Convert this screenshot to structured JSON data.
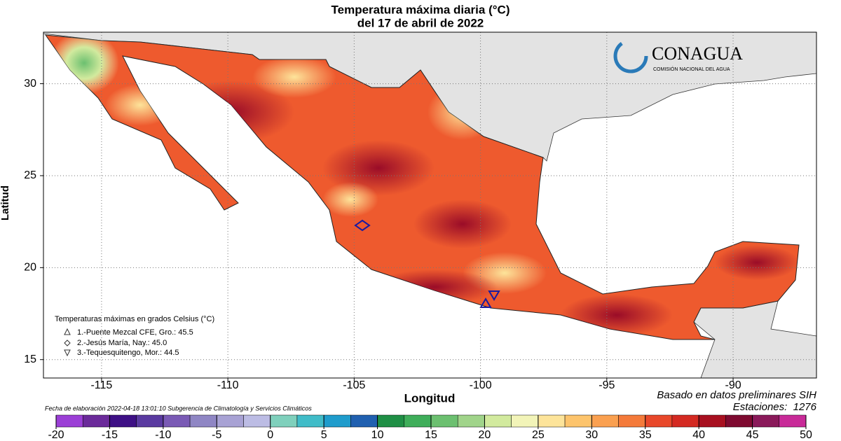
{
  "chart_data": {
    "type": "map",
    "title": [
      "Temperatura máxima diaria (°C)",
      "del 17 de abril de 2022"
    ],
    "x_label": "Longitud",
    "y_label": "Latitud",
    "xlim": [
      -117.3,
      -86.7
    ],
    "xticks": [
      -115,
      -110,
      -105,
      -100,
      -95,
      -90
    ],
    "ylim": [
      14,
      32.8
    ],
    "yticks": [
      15,
      20,
      25,
      30
    ],
    "grid": true,
    "logo": {
      "name": "CONAGUA",
      "subtitle": "COMISIÓN NACIONAL DEL AGUA"
    },
    "legend": {
      "title": "Temperaturas máximas en grados Celsius (°C)",
      "entries": [
        "1.-Puente Mezcal CFE, Gro.: 45.5",
        "2.-Jesús María, Nay.: 45.0",
        "3.-Tequesquitengo, Mor.: 44.5"
      ]
    },
    "source_note": "Basado en datos preliminares SIH",
    "stations_note": "Estaciones:  1276",
    "date_note": "Fecha de elaboración 2022-04-18 13:01:10 Subgerencia de Climatología y Servicios Climáticos",
    "colorbar": {
      "lim": [
        -20,
        50
      ],
      "ticks": [
        -20,
        -15,
        -10,
        -5,
        0,
        5,
        10,
        15,
        20,
        25,
        30,
        35,
        40,
        45,
        50
      ],
      "colors": [
        "#9b3fd6",
        "#6b2a9a",
        "#3e1085",
        "#5a3aa0",
        "#7a5ab5",
        "#8f86c4",
        "#a8a2d4",
        "#bcbce4",
        "#7fd0bc",
        "#40bcc8",
        "#1f9ccc",
        "#2060b0",
        "#1f8f45",
        "#3fae5a",
        "#6cc070",
        "#a0d48a",
        "#d2ea9e",
        "#f2f4b8",
        "#fde49a",
        "#fdc46c",
        "#faa050",
        "#f47a3a",
        "#e8482a",
        "#d42a22",
        "#a81020",
        "#7e0a30",
        "#8a1a5a",
        "#c82a98"
      ]
    }
  }
}
